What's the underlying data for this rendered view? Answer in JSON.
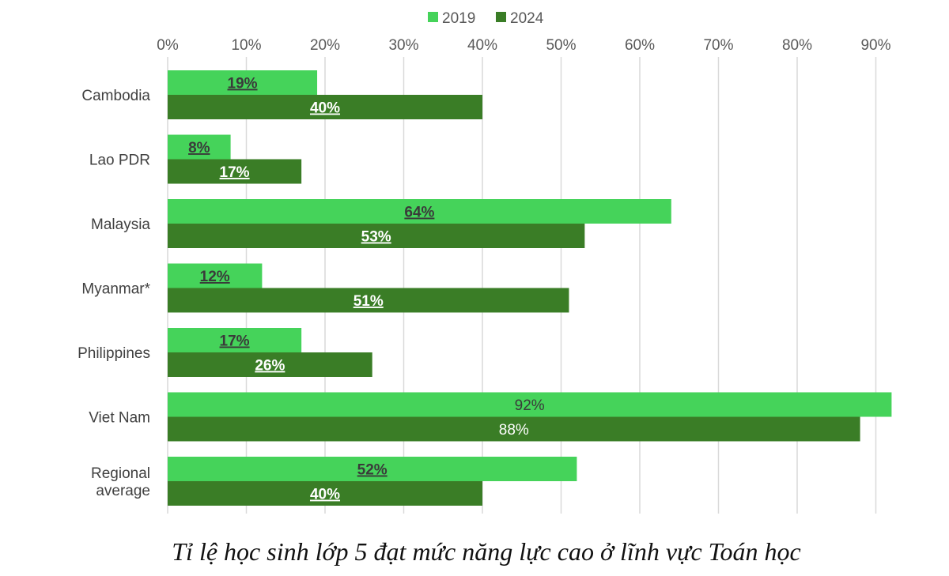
{
  "chart_data": {
    "type": "bar",
    "orientation": "horizontal",
    "categories": [
      "Cambodia",
      "Lao PDR",
      "Malaysia",
      "Myanmar*",
      "Philippines",
      "Viet Nam",
      "Regional average"
    ],
    "category_lines": [
      [
        "Cambodia"
      ],
      [
        "Lao PDR"
      ],
      [
        "Malaysia"
      ],
      [
        "Myanmar*"
      ],
      [
        "Philippines"
      ],
      [
        "Viet Nam"
      ],
      [
        "Regional",
        "average"
      ]
    ],
    "series": [
      {
        "name": "2019",
        "color": "#45d35a",
        "values": [
          19,
          8,
          64,
          12,
          17,
          92,
          52
        ],
        "labels": [
          "19%",
          "8%",
          "64%",
          "12%",
          "17%",
          "92%",
          "52%"
        ],
        "label_color": "#3a3a3a",
        "label_bold": [
          true,
          true,
          true,
          true,
          true,
          false,
          true
        ]
      },
      {
        "name": "2024",
        "color": "#3a7d26",
        "values": [
          40,
          17,
          53,
          51,
          26,
          88,
          40
        ],
        "labels": [
          "40%",
          "17%",
          "53%",
          "51%",
          "26%",
          "88%",
          "40%"
        ],
        "label_color": "#ffffff",
        "label_bold": [
          true,
          true,
          true,
          true,
          true,
          false,
          true
        ]
      }
    ],
    "xlim": [
      0,
      90
    ],
    "xticks": [
      0,
      10,
      20,
      30,
      40,
      50,
      60,
      70,
      80,
      90
    ],
    "xtick_labels": [
      "0%",
      "10%",
      "20%",
      "30%",
      "40%",
      "50%",
      "60%",
      "70%",
      "80%",
      "90%"
    ],
    "legend_position": "top-center",
    "grid": true,
    "gridline_color": "#d9d9d9"
  },
  "caption": "Tỉ lệ học sinh lớp 5 đạt mức năng lực cao ở lĩnh vực Toán học"
}
